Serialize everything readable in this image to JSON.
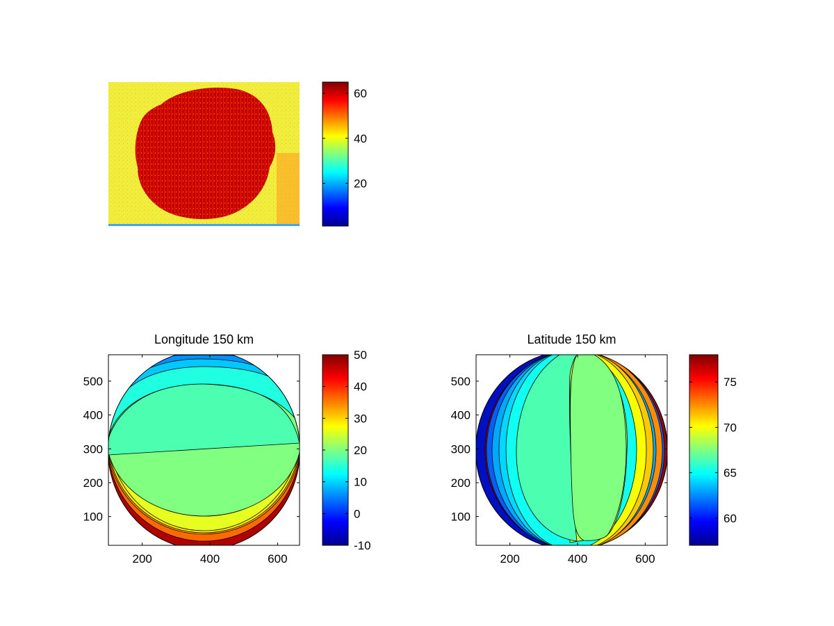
{
  "chart_data": [
    {
      "type": "heatmap",
      "title": "",
      "xlabel": "",
      "ylabel": "",
      "description_values": {
        "background_level": 42,
        "disk_level": 62,
        "colormap": "jet"
      },
      "colorbar": {
        "range": [
          1,
          65
        ],
        "ticks": [
          20,
          40,
          60
        ]
      },
      "axis_ticks_visible": false,
      "colors": {
        "background": "#f2ec3c",
        "disk": "#b40000",
        "bottom_line": "#3aa6ff"
      }
    },
    {
      "type": "heatmap",
      "title": "Longitude 150 km",
      "xlabel": "",
      "ylabel": "",
      "xlim": [
        100,
        665
      ],
      "ylim": [
        15,
        578
      ],
      "xticks": [
        200,
        400,
        600
      ],
      "yticks": [
        100,
        200,
        300,
        400,
        500
      ],
      "colorbar": {
        "range": [
          -10,
          50
        ],
        "ticks": [
          -10,
          0,
          10,
          20,
          30,
          40,
          50
        ]
      },
      "contour_levels": [
        14,
        16,
        18,
        20,
        22,
        24,
        26,
        28,
        30
      ],
      "colormap": "jet"
    },
    {
      "type": "heatmap",
      "title": "Latitude 150 km",
      "xlabel": "",
      "ylabel": "",
      "xlim": [
        100,
        665
      ],
      "ylim": [
        15,
        578
      ],
      "xticks": [
        200,
        400,
        600
      ],
      "yticks": [
        100,
        200,
        300,
        400,
        500
      ],
      "colorbar": {
        "range": [
          57,
          78
        ],
        "ticks": [
          60,
          65,
          70,
          75
        ]
      },
      "contour_levels": [
        61,
        62,
        63,
        64,
        65,
        66,
        67,
        68,
        69,
        70,
        71,
        72
      ],
      "colormap": "jet"
    }
  ]
}
